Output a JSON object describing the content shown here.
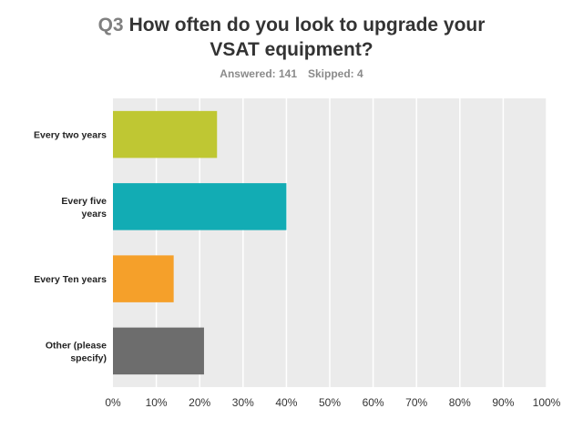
{
  "question": {
    "number": "Q3",
    "line1": "How often do you look to upgrade your",
    "line2": "VSAT equipment?"
  },
  "stats": {
    "answered": "Answered: 141",
    "skipped": "Skipped: 4"
  },
  "chart_data": {
    "type": "bar",
    "orientation": "horizontal",
    "categories": [
      [
        "Every two years"
      ],
      [
        "Every five",
        "years"
      ],
      [
        "Every Ten years"
      ],
      [
        "Other (please",
        "specify)"
      ]
    ],
    "values": [
      24,
      40,
      14,
      21
    ],
    "colors": [
      "#bfc733",
      "#12acb4",
      "#f5a02a",
      "#6d6d6d"
    ],
    "xlim": [
      0,
      100
    ],
    "ticks": [
      0,
      10,
      20,
      30,
      40,
      50,
      60,
      70,
      80,
      90,
      100
    ],
    "tick_format": "%",
    "grid": true,
    "plot_background": "#ebebeb",
    "grid_color": "#ffffff"
  }
}
